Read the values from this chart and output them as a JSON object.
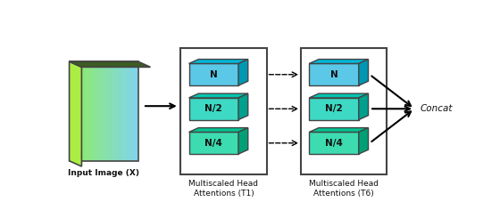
{
  "fig_width": 5.6,
  "fig_height": 2.36,
  "dpi": 100,
  "bg_color": "#ffffff",
  "input_label": "Input Image (X)",
  "box1_label": "Multiscaled Head\nAttentions (T1)",
  "box2_label": "Multiscaled Head\nAttentions (T6)",
  "concat_label": "Concat",
  "cube_labels": [
    "N",
    "N/2",
    "N/4"
  ],
  "cube_face_N": "#5bc8e8",
  "cube_top_N": "#00b8d9",
  "cube_side_N": "#0097b3",
  "cube_face_N2": "#3dd9c4",
  "cube_top_N2": "#00c4ae",
  "cube_side_N2": "#00a08e",
  "cube_face_N4": "#3ddbb0",
  "cube_top_N4": "#00c492",
  "cube_side_N4": "#00a076",
  "text_color": "#111111",
  "label_fontsize": 6.5,
  "cube_label_fontsize": 7.5
}
